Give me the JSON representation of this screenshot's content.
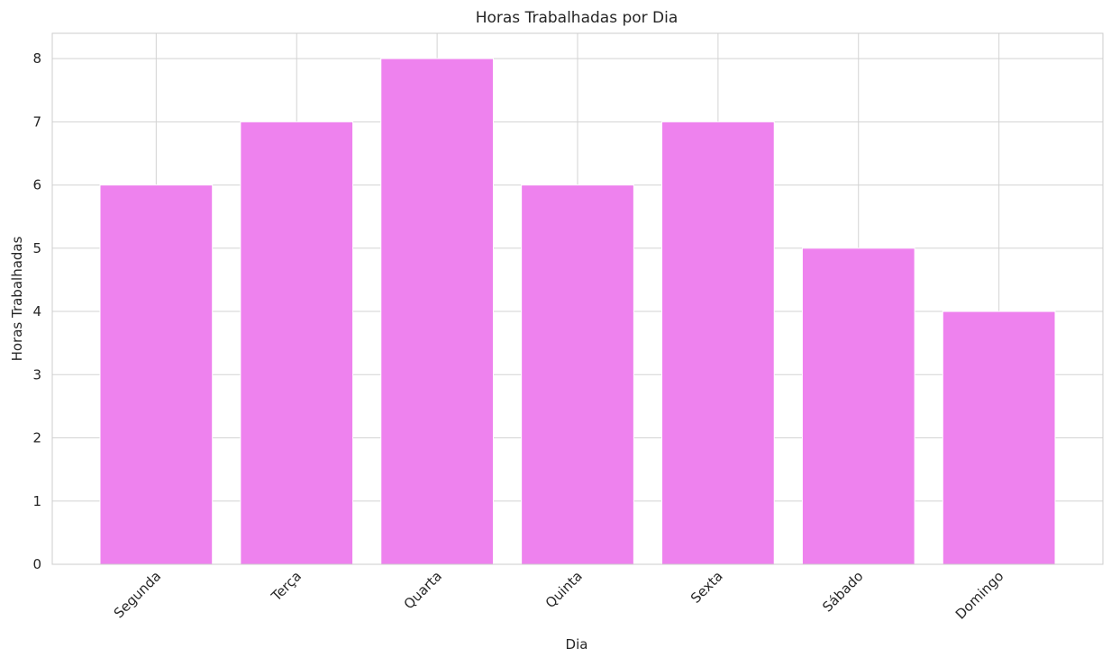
{
  "chart_data": {
    "type": "bar",
    "title": "Horas Trabalhadas por Dia",
    "xlabel": "Dia",
    "ylabel": "Horas Trabalhadas",
    "categories": [
      "Segunda",
      "Terça",
      "Quarta",
      "Quinta",
      "Sexta",
      "Sábado",
      "Domingo"
    ],
    "values": [
      6,
      7,
      8,
      6,
      7,
      5,
      4
    ],
    "ylim": [
      0,
      8.4
    ],
    "yticks": [
      0,
      1,
      2,
      3,
      4,
      5,
      6,
      7,
      8
    ],
    "grid": true,
    "bar_color": "#ee82ee",
    "grid_color": "#d3d3d3",
    "axes_edge_color": "#cccccc"
  }
}
